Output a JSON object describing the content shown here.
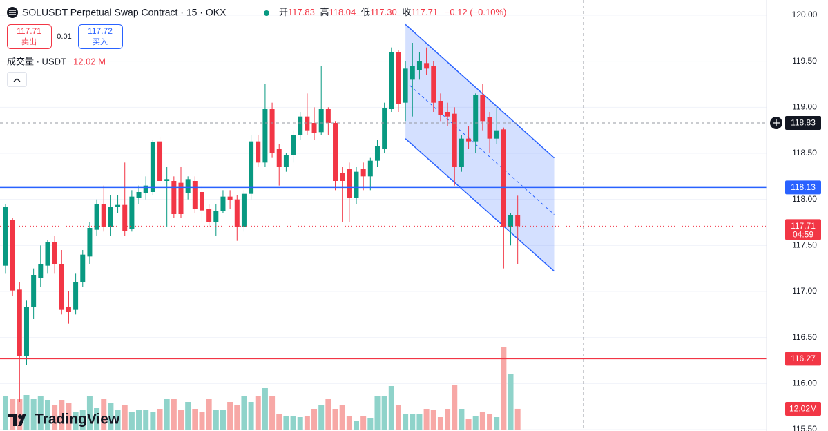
{
  "chart_data": {
    "type": "candlestick",
    "title": "SOLUSDT Perpetual Swap Contract · 15 · OKX",
    "header": {
      "o_label": "开",
      "o": "117.83",
      "h_label": "高",
      "h": "118.04",
      "l_label": "低",
      "l": "117.30",
      "c_label": "收",
      "c": "117.71",
      "change": "−0.12 (−0.10%)"
    },
    "sell": {
      "price": "117.71",
      "label": "卖出"
    },
    "spread": "0.01",
    "buy": {
      "price": "117.72",
      "label": "买入"
    },
    "volume_title": "成交量 · USDT",
    "volume_last_label": "12.02M",
    "volume_legend": "12.02 M",
    "brand": "TradingView",
    "countdown": "04:59",
    "ylim": [
      115.5,
      120.0
    ],
    "yticks": [
      {
        "value": 120,
        "label": "120.00"
      },
      {
        "value": 119.5,
        "label": "119.50"
      },
      {
        "value": 119,
        "label": "119.00"
      },
      {
        "value": 118.5,
        "label": "118.50"
      },
      {
        "value": 118,
        "label": "118.00"
      },
      {
        "value": 117.5,
        "label": "117.50"
      },
      {
        "value": 117,
        "label": "117.00"
      },
      {
        "value": 116.5,
        "label": "116.50"
      },
      {
        "value": 116,
        "label": "116.00"
      },
      {
        "value": 115.5,
        "label": "115.50"
      }
    ],
    "grid": true,
    "up_color": "#089981",
    "down_color": "#f23645",
    "up_volume_color": "#8fd3ca",
    "down_volume_color": "#f7a8a6",
    "vlim": [
      0,
      60
    ],
    "candles": [
      [
        117.28,
        117.95,
        117.2,
        117.92
      ],
      [
        117.78,
        117.8,
        116.95,
        117.01
      ],
      [
        117.02,
        117.1,
        115.8,
        116.3
      ],
      [
        116.3,
        116.9,
        116.2,
        116.83
      ],
      [
        116.83,
        117.25,
        116.7,
        117.18
      ],
      [
        117.15,
        117.5,
        117.05,
        117.3
      ],
      [
        117.28,
        117.56,
        117.2,
        117.54
      ],
      [
        117.54,
        117.6,
        117.2,
        117.3
      ],
      [
        117.3,
        117.45,
        116.75,
        116.8
      ],
      [
        116.83,
        117.0,
        116.65,
        116.78
      ],
      [
        116.8,
        117.2,
        116.75,
        117.1
      ],
      [
        117.1,
        117.45,
        117.05,
        117.4
      ],
      [
        117.38,
        117.75,
        117.3,
        117.69
      ],
      [
        117.67,
        118.0,
        117.6,
        117.95
      ],
      [
        117.95,
        118.15,
        117.65,
        117.7
      ],
      [
        117.7,
        118.05,
        117.6,
        117.92
      ],
      [
        117.92,
        118.05,
        117.85,
        117.94
      ],
      [
        117.94,
        118.4,
        117.6,
        117.66
      ],
      [
        117.68,
        118.1,
        117.65,
        118.03
      ],
      [
        118.02,
        118.15,
        117.95,
        118.08
      ],
      [
        118.07,
        118.25,
        118.0,
        118.15
      ],
      [
        118.08,
        118.65,
        118.05,
        118.62
      ],
      [
        118.63,
        118.68,
        118.15,
        118.2
      ],
      [
        118.2,
        118.35,
        117.7,
        118.22
      ],
      [
        118.2,
        118.25,
        117.8,
        117.84
      ],
      [
        118.18,
        118.35,
        117.8,
        117.84
      ],
      [
        118.07,
        118.25,
        118.0,
        118.22
      ],
      [
        118.2,
        118.25,
        117.85,
        117.9
      ],
      [
        118.08,
        118.15,
        117.75,
        117.88
      ],
      [
        117.9,
        117.95,
        117.7,
        117.75
      ],
      [
        117.75,
        117.95,
        117.6,
        117.87
      ],
      [
        117.87,
        118.1,
        117.85,
        118.03
      ],
      [
        118.03,
        118.1,
        117.9,
        117.99
      ],
      [
        118.0,
        118.05,
        117.55,
        117.7
      ],
      [
        117.7,
        118.1,
        117.65,
        118.06
      ],
      [
        118.06,
        118.7,
        118.0,
        118.63
      ],
      [
        118.63,
        118.7,
        118.35,
        118.4
      ],
      [
        118.4,
        119.25,
        118.35,
        118.98
      ],
      [
        118.98,
        119.05,
        118.45,
        118.5
      ],
      [
        118.55,
        118.6,
        118.15,
        118.35
      ],
      [
        118.35,
        118.5,
        118.3,
        118.48
      ],
      [
        118.48,
        118.75,
        118.4,
        118.7
      ],
      [
        118.7,
        118.95,
        118.65,
        118.9
      ],
      [
        118.9,
        119.15,
        118.7,
        118.75
      ],
      [
        118.83,
        119.0,
        118.65,
        118.72
      ],
      [
        118.73,
        119.45,
        118.7,
        118.98
      ],
      [
        118.98,
        119.0,
        118.7,
        118.83
      ],
      [
        118.83,
        118.85,
        118.1,
        118.2
      ],
      [
        118.29,
        118.35,
        117.75,
        118.2
      ],
      [
        118.33,
        118.4,
        117.75,
        118.02
      ],
      [
        118.02,
        118.35,
        117.95,
        118.3
      ],
      [
        118.33,
        118.4,
        118.1,
        118.25
      ],
      [
        118.25,
        118.45,
        118.1,
        118.42
      ],
      [
        118.42,
        118.65,
        118.35,
        118.58
      ],
      [
        118.55,
        119.05,
        118.5,
        118.99
      ],
      [
        118.98,
        119.65,
        118.95,
        119.6
      ],
      [
        119.6,
        119.62,
        118.95,
        119.04
      ],
      [
        119.05,
        119.5,
        118.85,
        119.42
      ],
      [
        119.3,
        119.7,
        118.9,
        119.45
      ],
      [
        119.4,
        119.6,
        119.3,
        119.5
      ],
      [
        119.48,
        119.65,
        119.35,
        119.42
      ],
      [
        119.45,
        119.5,
        118.95,
        119.05
      ],
      [
        119.07,
        119.15,
        118.85,
        118.92
      ],
      [
        118.95,
        119.05,
        118.8,
        118.9
      ],
      [
        118.93,
        119.0,
        118.15,
        118.35
      ],
      [
        118.35,
        118.7,
        118.3,
        118.66
      ],
      [
        118.66,
        118.8,
        118.55,
        118.63
      ],
      [
        118.63,
        119.15,
        118.5,
        119.13
      ],
      [
        119.13,
        119.25,
        118.75,
        118.85
      ],
      [
        118.89,
        118.95,
        118.5,
        118.66
      ],
      [
        118.66,
        119.0,
        118.6,
        118.75
      ],
      [
        118.76,
        118.78,
        117.25,
        117.7
      ],
      [
        117.7,
        117.85,
        117.5,
        117.83
      ],
      [
        117.83,
        118.04,
        117.3,
        117.71
      ]
    ],
    "volumes": [
      19.2,
      18,
      18,
      20,
      18,
      19.2,
      17.2,
      14,
      17.2,
      15.2,
      10,
      11.2,
      19.2,
      12.8,
      18,
      15.2,
      11.2,
      14,
      10,
      11.2,
      11.2,
      10,
      12,
      18,
      18,
      11.2,
      16,
      12,
      10,
      18,
      11.2,
      11.2,
      16,
      14,
      19.2,
      16,
      19.2,
      24,
      19.2,
      8.8,
      8,
      8,
      7.2,
      8,
      12,
      14,
      18,
      12,
      14,
      8,
      4.8,
      8,
      6.8,
      19.2,
      19.2,
      25.2,
      14,
      9.2,
      9.2,
      8.8,
      12,
      11.2,
      7.2,
      12,
      25.6,
      12,
      6,
      8,
      10,
      9.2,
      7.2,
      48,
      32,
      12.02
    ],
    "channel": {
      "start_index": 57,
      "end_index": 78.2,
      "upper": [
        119.9,
        118.45
      ],
      "lower": [
        118.66,
        117.22
      ],
      "color": "#2962ff"
    },
    "price_lines": [
      {
        "value": 118.83,
        "color": "#131722",
        "line_color": "#9598a1",
        "style": "dashed"
      },
      {
        "value": 118.13,
        "color": "#2962ff",
        "line_color": "#2962ff",
        "style": "solid"
      },
      {
        "value": 117.71,
        "color": "#f23645",
        "line_color": "#f23645",
        "style": "dotted"
      },
      {
        "value": 116.27,
        "color": "#f23645",
        "line_color": "#f23645",
        "style": "solid"
      }
    ]
  }
}
